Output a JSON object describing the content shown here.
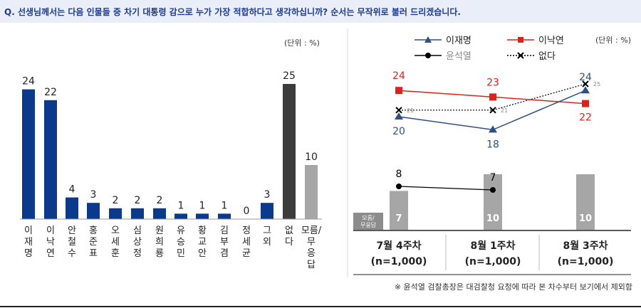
{
  "question": "Q. 선생님께서는 다음 인물들 중 차기 대통령 감으로 누가 가장 적합하다고 생각하십니까? 순서는 무작위로 불러 드리겠습니다.",
  "footnote": "※ 윤석열 검찰총장은 대검찰청 요청에 따라 본 차수부터 보기에서 제외함",
  "chart_data": [
    {
      "type": "bar",
      "unit_label": "(단위 : %)",
      "categories": [
        "이\n재\n명",
        "이\n낙\n연",
        "안\n철\n수",
        "홍\n준\n표",
        "오\n세\n훈",
        "심\n상\n정",
        "원\n희\n룡",
        "유\n승\n민",
        "황\n교\n안",
        "김\n부\n겸",
        "정\n세\n균",
        "그\n외",
        "없\n다",
        "모름/\n무\n응\n답"
      ],
      "values": [
        24,
        22,
        4,
        3,
        2,
        2,
        2,
        1,
        1,
        1,
        0,
        3,
        25,
        10
      ],
      "colors": [
        "#0b3a8c",
        "#0b3a8c",
        "#0b3a8c",
        "#0b3a8c",
        "#0b3a8c",
        "#0b3a8c",
        "#0b3a8c",
        "#0b3a8c",
        "#0b3a8c",
        "#0b3a8c",
        "#0b3a8c",
        "#0b3a8c",
        "#3c3c3c",
        "#a6a6a6"
      ]
    },
    {
      "type": "line",
      "unit_label": "(단위 : %)",
      "categories": [
        "7월 4주차",
        "8월 1주차",
        "8월 3주차"
      ],
      "sample_sizes": [
        "(n=1,000)",
        "(n=1,000)",
        "(n=1,000)"
      ],
      "series": [
        {
          "name": "이재명",
          "values": [
            20,
            18,
            24
          ],
          "color": "#2e4f86"
        },
        {
          "name": "이낙연",
          "values": [
            24,
            23,
            22
          ],
          "color": "#e0201b"
        },
        {
          "name": "윤석열",
          "values": [
            8,
            7,
            null
          ],
          "color": "#000000"
        },
        {
          "name": "없다",
          "values": [
            21,
            21,
            25
          ],
          "color": "#000000"
        }
      ],
      "bar_series": {
        "name": "모름/\n무응답",
        "values": [
          7,
          10,
          10
        ],
        "color": "#a6a6a6"
      }
    }
  ]
}
